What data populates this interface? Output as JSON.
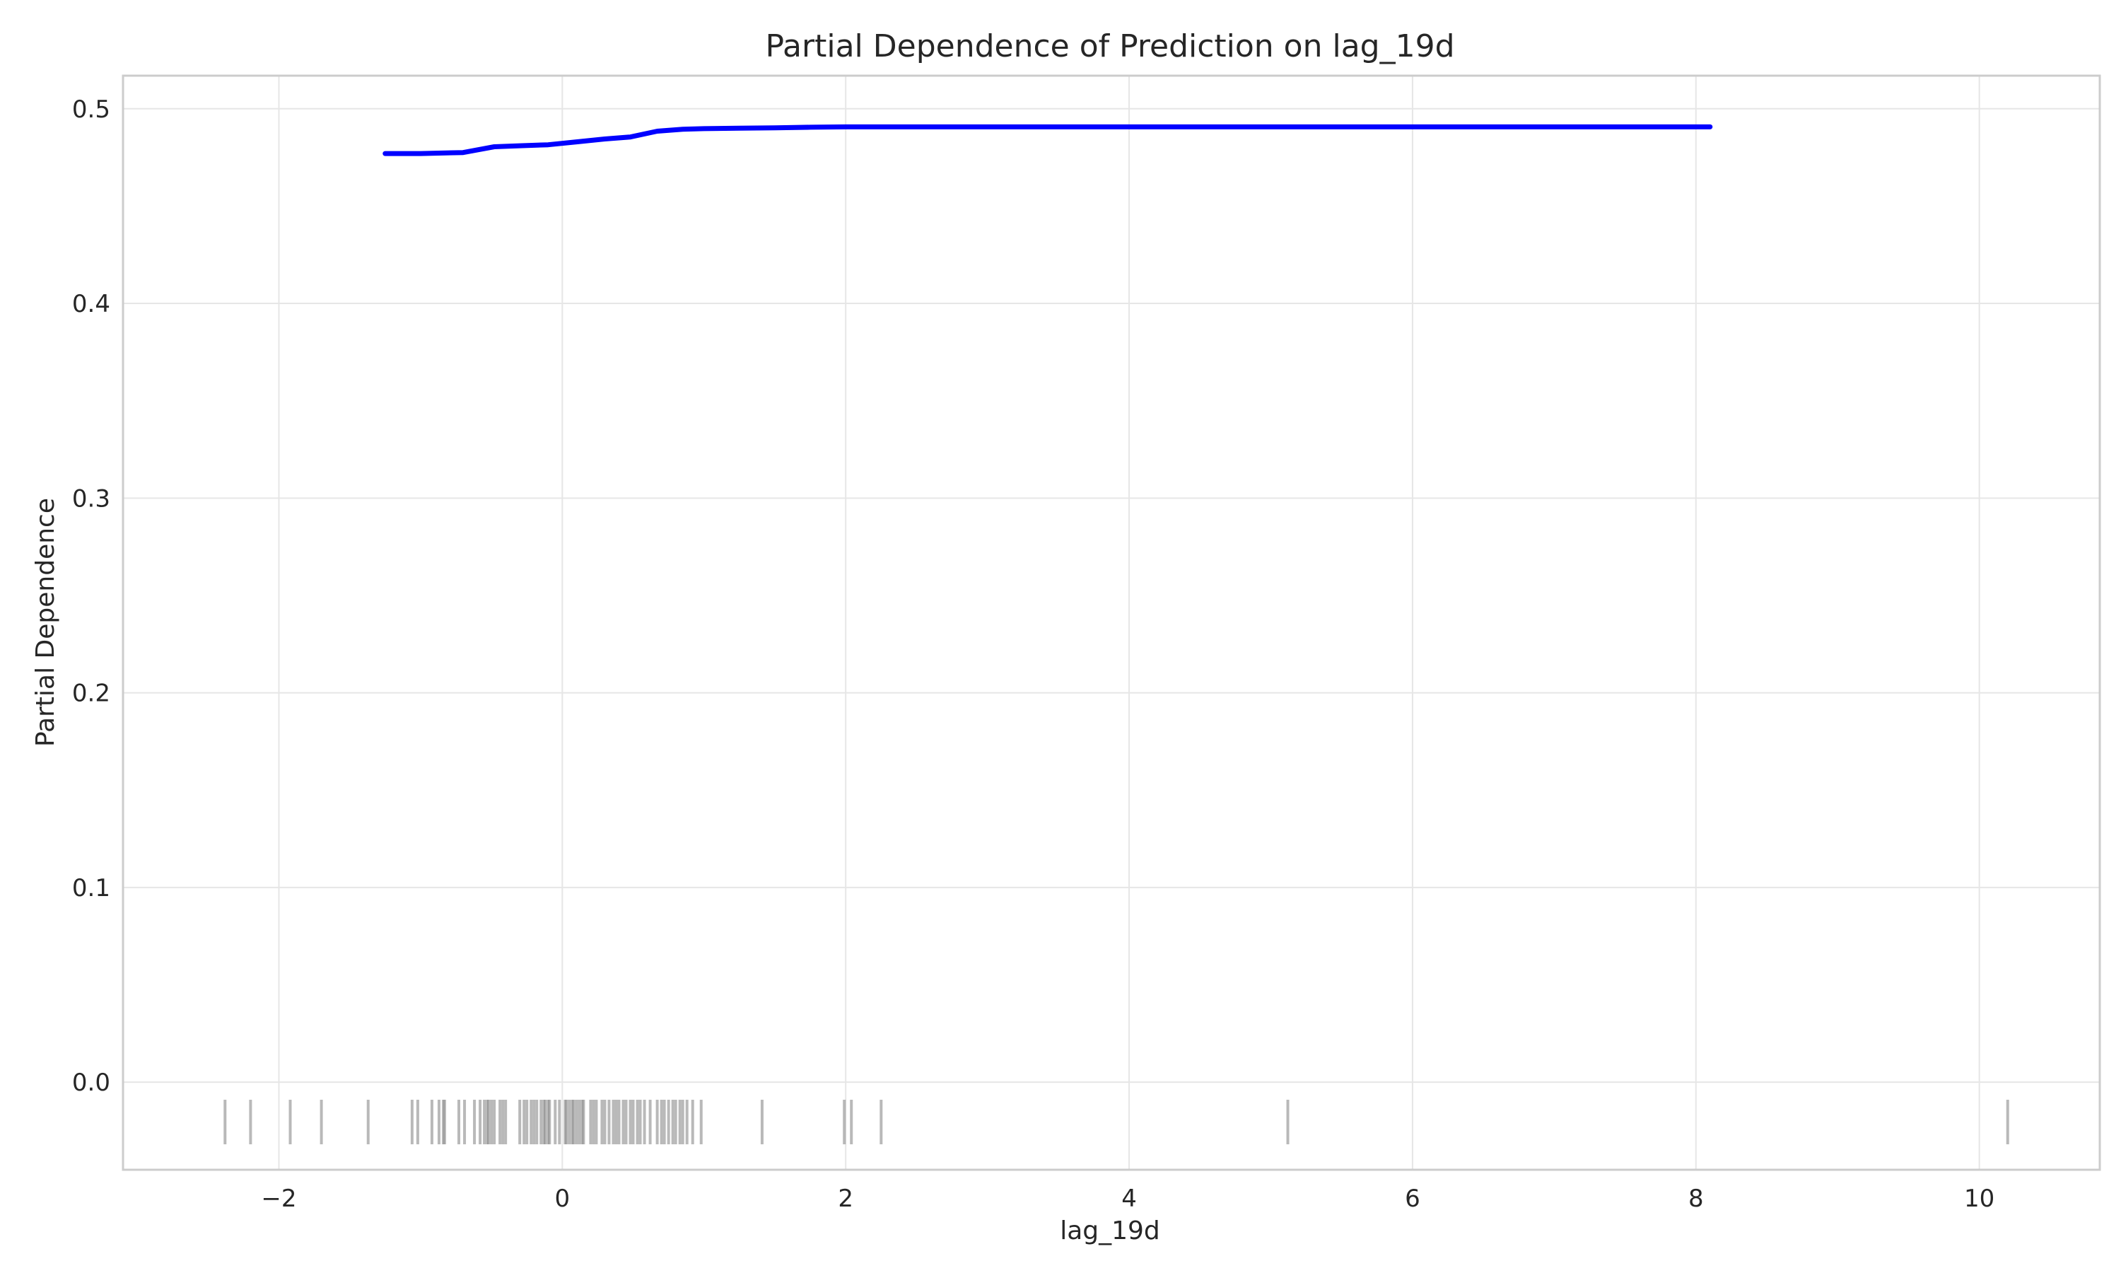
{
  "chart_data": {
    "type": "line",
    "title": "Partial Dependence of Prediction on lag_19d",
    "xlabel": "lag_19d",
    "ylabel": "Partial Dependence",
    "xlim": [
      -3.1,
      10.85
    ],
    "ylim": [
      -0.045,
      0.517
    ],
    "grid": true,
    "x_ticks": [
      -2,
      0,
      2,
      4,
      6,
      8,
      10
    ],
    "x_tick_labels": [
      "−2",
      "0",
      "2",
      "4",
      "6",
      "8",
      "10"
    ],
    "y_ticks": [
      0.0,
      0.1,
      0.2,
      0.3,
      0.4,
      0.5
    ],
    "y_tick_labels": [
      "0.0",
      "0.1",
      "0.2",
      "0.3",
      "0.4",
      "0.5"
    ],
    "series": [
      {
        "color": "#0000ff",
        "x": [
          -1.25,
          -1.0,
          -0.7,
          -0.48,
          -0.3,
          -0.1,
          0.1,
          0.3,
          0.48,
          0.67,
          0.85,
          1.0,
          1.25,
          1.5,
          1.75,
          2.0,
          3.0,
          4.0,
          5.0,
          6.0,
          7.0,
          8.1
        ],
        "y": [
          0.477,
          0.477,
          0.4775,
          0.4805,
          0.481,
          0.4815,
          0.483,
          0.4845,
          0.4855,
          0.4885,
          0.4895,
          0.4898,
          0.49,
          0.4902,
          0.4905,
          0.4907,
          0.4907,
          0.4907,
          0.4907,
          0.4907,
          0.4907,
          0.4907
        ]
      }
    ],
    "rug": {
      "color": "#808080",
      "x": [
        -2.38,
        -2.2,
        -1.92,
        -1.7,
        -1.37,
        -1.06,
        -1.02,
        -0.92,
        -0.87,
        -0.84,
        -0.83,
        -0.73,
        -0.69,
        -0.62,
        -0.58,
        -0.55,
        -0.53,
        -0.52,
        -0.5,
        -0.48,
        -0.44,
        -0.42,
        -0.4,
        -0.3,
        -0.27,
        -0.25,
        -0.22,
        -0.2,
        -0.18,
        -0.15,
        -0.13,
        -0.12,
        -0.1,
        -0.09,
        -0.05,
        -0.02,
        0.02,
        0.03,
        0.05,
        0.07,
        0.08,
        0.1,
        0.12,
        0.14,
        0.15,
        0.2,
        0.22,
        0.24,
        0.28,
        0.3,
        0.33,
        0.36,
        0.38,
        0.4,
        0.43,
        0.45,
        0.48,
        0.5,
        0.53,
        0.55,
        0.58,
        0.62,
        0.67,
        0.7,
        0.72,
        0.75,
        0.78,
        0.8,
        0.83,
        0.85,
        0.88,
        0.92,
        0.98,
        1.41,
        1.99,
        2.04,
        2.25,
        5.12,
        10.2
      ]
    }
  }
}
